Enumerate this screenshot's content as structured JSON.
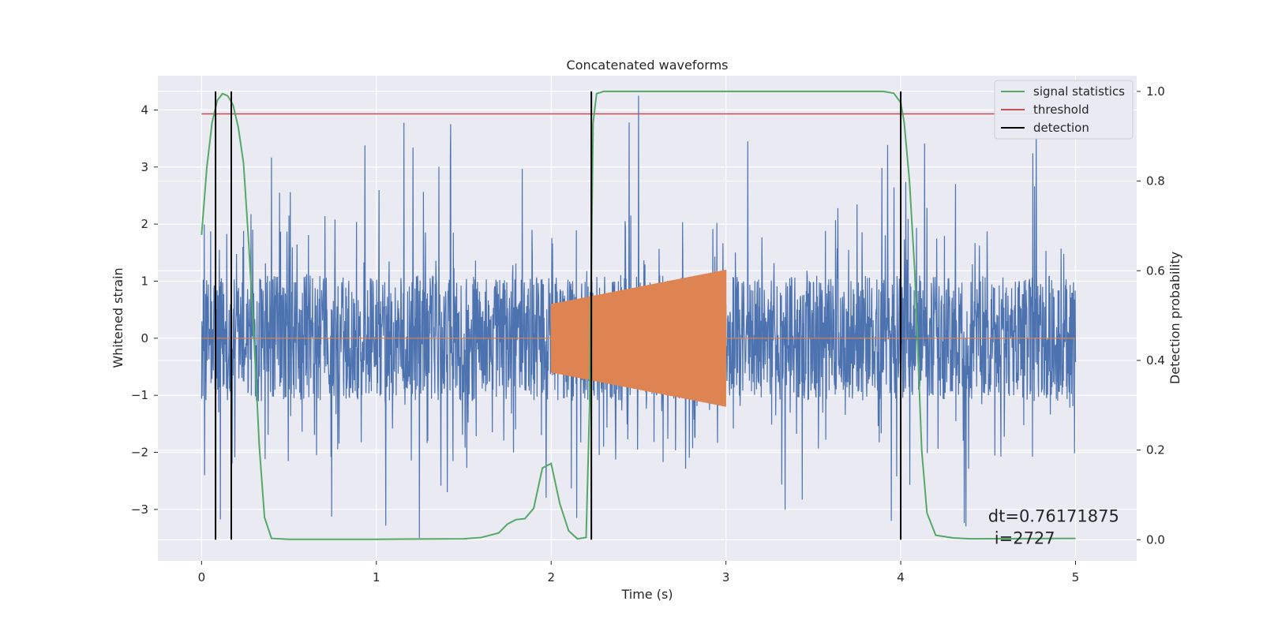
{
  "chart_data": {
    "type": "line",
    "title": "Concatenated waveforms",
    "xlabel": "Time (s)",
    "ylabel": "Whitened strain",
    "ylabel_right": "Detection probability",
    "xlim": [
      -0.25,
      5.35
    ],
    "ylim": [
      -3.9,
      4.6
    ],
    "ylim_right": [
      -0.047,
      1.035
    ],
    "x_ticks": [
      0,
      1,
      2,
      3,
      4,
      5
    ],
    "y_ticks": [
      -3,
      -2,
      -1,
      0,
      1,
      2,
      3,
      4
    ],
    "y_ticks_right": [
      0.0,
      0.2,
      0.4,
      0.6,
      0.8,
      1.0
    ],
    "x_tick_labels": [
      "0",
      "1",
      "2",
      "3",
      "4",
      "5"
    ],
    "y_tick_labels": [
      "−3",
      "−2",
      "−1",
      "0",
      "1",
      "2",
      "3",
      "4"
    ],
    "y_tick_labels_right": [
      "0.0",
      "0.2",
      "0.4",
      "0.6",
      "0.8",
      "1.0"
    ],
    "grid": true,
    "legend_position": "top-right",
    "series": [
      {
        "name": "",
        "axis": "left",
        "kind": "noise",
        "color": "#4c72b0",
        "x_range": [
          0,
          5
        ],
        "core_amplitude": 1.1,
        "spike_max": 4.25,
        "spike_min": -3.5
      },
      {
        "name": "",
        "axis": "left",
        "kind": "chirp",
        "color": "#dd8452",
        "x_range": [
          0,
          5
        ],
        "active_range": [
          2.0,
          3.0
        ],
        "amplitude_start": 0.6,
        "amplitude_end": 1.2
      },
      {
        "name": "signal statistics",
        "axis": "right",
        "color": "#55a868",
        "x": [
          0.0,
          0.03,
          0.06,
          0.09,
          0.12,
          0.15,
          0.18,
          0.21,
          0.24,
          0.27,
          0.3,
          0.33,
          0.36,
          0.4,
          0.5,
          1.0,
          1.5,
          1.6,
          1.7,
          1.75,
          1.8,
          1.85,
          1.9,
          1.95,
          2.0,
          2.05,
          2.1,
          2.15,
          2.2,
          2.22,
          2.24,
          2.26,
          2.3,
          2.4,
          3.0,
          3.5,
          3.9,
          3.96,
          4.0,
          4.02,
          4.05,
          4.08,
          4.1,
          4.12,
          4.15,
          4.2,
          4.3,
          4.4,
          5.0
        ],
        "y": [
          0.68,
          0.83,
          0.93,
          0.98,
          0.995,
          0.99,
          0.97,
          0.92,
          0.84,
          0.66,
          0.45,
          0.21,
          0.05,
          0.003,
          0.001,
          0.001,
          0.002,
          0.005,
          0.015,
          0.035,
          0.045,
          0.047,
          0.07,
          0.16,
          0.17,
          0.08,
          0.02,
          0.002,
          0.005,
          0.3,
          0.93,
          0.995,
          1.0,
          1.0,
          1.0,
          1.0,
          1.0,
          0.996,
          0.975,
          0.93,
          0.8,
          0.6,
          0.4,
          0.2,
          0.06,
          0.01,
          0.004,
          0.002,
          0.003
        ]
      },
      {
        "name": "threshold",
        "axis": "right",
        "color": "#c44e52",
        "x": [
          0,
          5
        ],
        "y": [
          0.95,
          0.95
        ]
      }
    ],
    "detections": {
      "name": "detection",
      "color": "#000000",
      "x": [
        0.08,
        0.17,
        2.23,
        4.0
      ],
      "y_range": [
        0.0,
        1.0
      ]
    },
    "annotation": {
      "line1": "dt=0.76171875",
      "line2": "i=2727",
      "x": 4.5,
      "y": -3.3
    },
    "colors": {
      "background": "#eaeaf2",
      "grid": "#ffffff",
      "text": "#262626"
    }
  }
}
